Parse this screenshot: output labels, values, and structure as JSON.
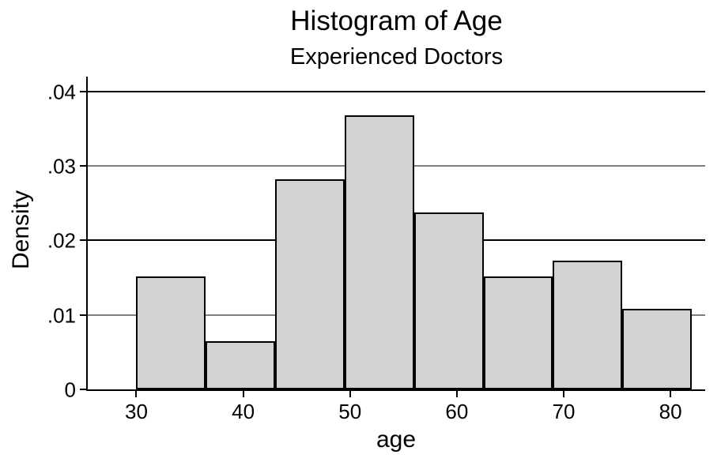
{
  "chart_data": {
    "type": "bar",
    "kind": "histogram",
    "title": "Histogram of Age",
    "subtitle": "Experienced Doctors",
    "xlabel": "age",
    "ylabel": "Density",
    "bin_width": 6.5,
    "bin_edges": [
      30,
      36.5,
      43,
      49.5,
      56,
      62.5,
      69,
      75.5,
      82
    ],
    "densities": [
      0.0152,
      0.0065,
      0.0282,
      0.0368,
      0.0238,
      0.0152,
      0.0173,
      0.0108
    ],
    "x_ticks": [
      {
        "value": 30,
        "label": "30"
      },
      {
        "value": 40,
        "label": "40"
      },
      {
        "value": 50,
        "label": "50"
      },
      {
        "value": 60,
        "label": "60"
      },
      {
        "value": 70,
        "label": "70"
      },
      {
        "value": 80,
        "label": "80"
      }
    ],
    "y_ticks": [
      {
        "value": 0,
        "label": "0"
      },
      {
        "value": 0.01,
        "label": ".01"
      },
      {
        "value": 0.02,
        "label": ".02"
      },
      {
        "value": 0.03,
        "label": ".03"
      },
      {
        "value": 0.04,
        "label": ".04"
      }
    ],
    "xlim": [
      25.45,
      83.25
    ],
    "ylim": [
      0,
      0.042
    ],
    "grid": "horizontal-only",
    "legend": "none",
    "colors": {
      "background": "#ffffff",
      "text": "#000000",
      "axis": "#000000",
      "bar_fill": "#d2d2d2",
      "bar_border": "#000000",
      "grid_strong": "#000000",
      "grid_soft": "#808080"
    }
  }
}
